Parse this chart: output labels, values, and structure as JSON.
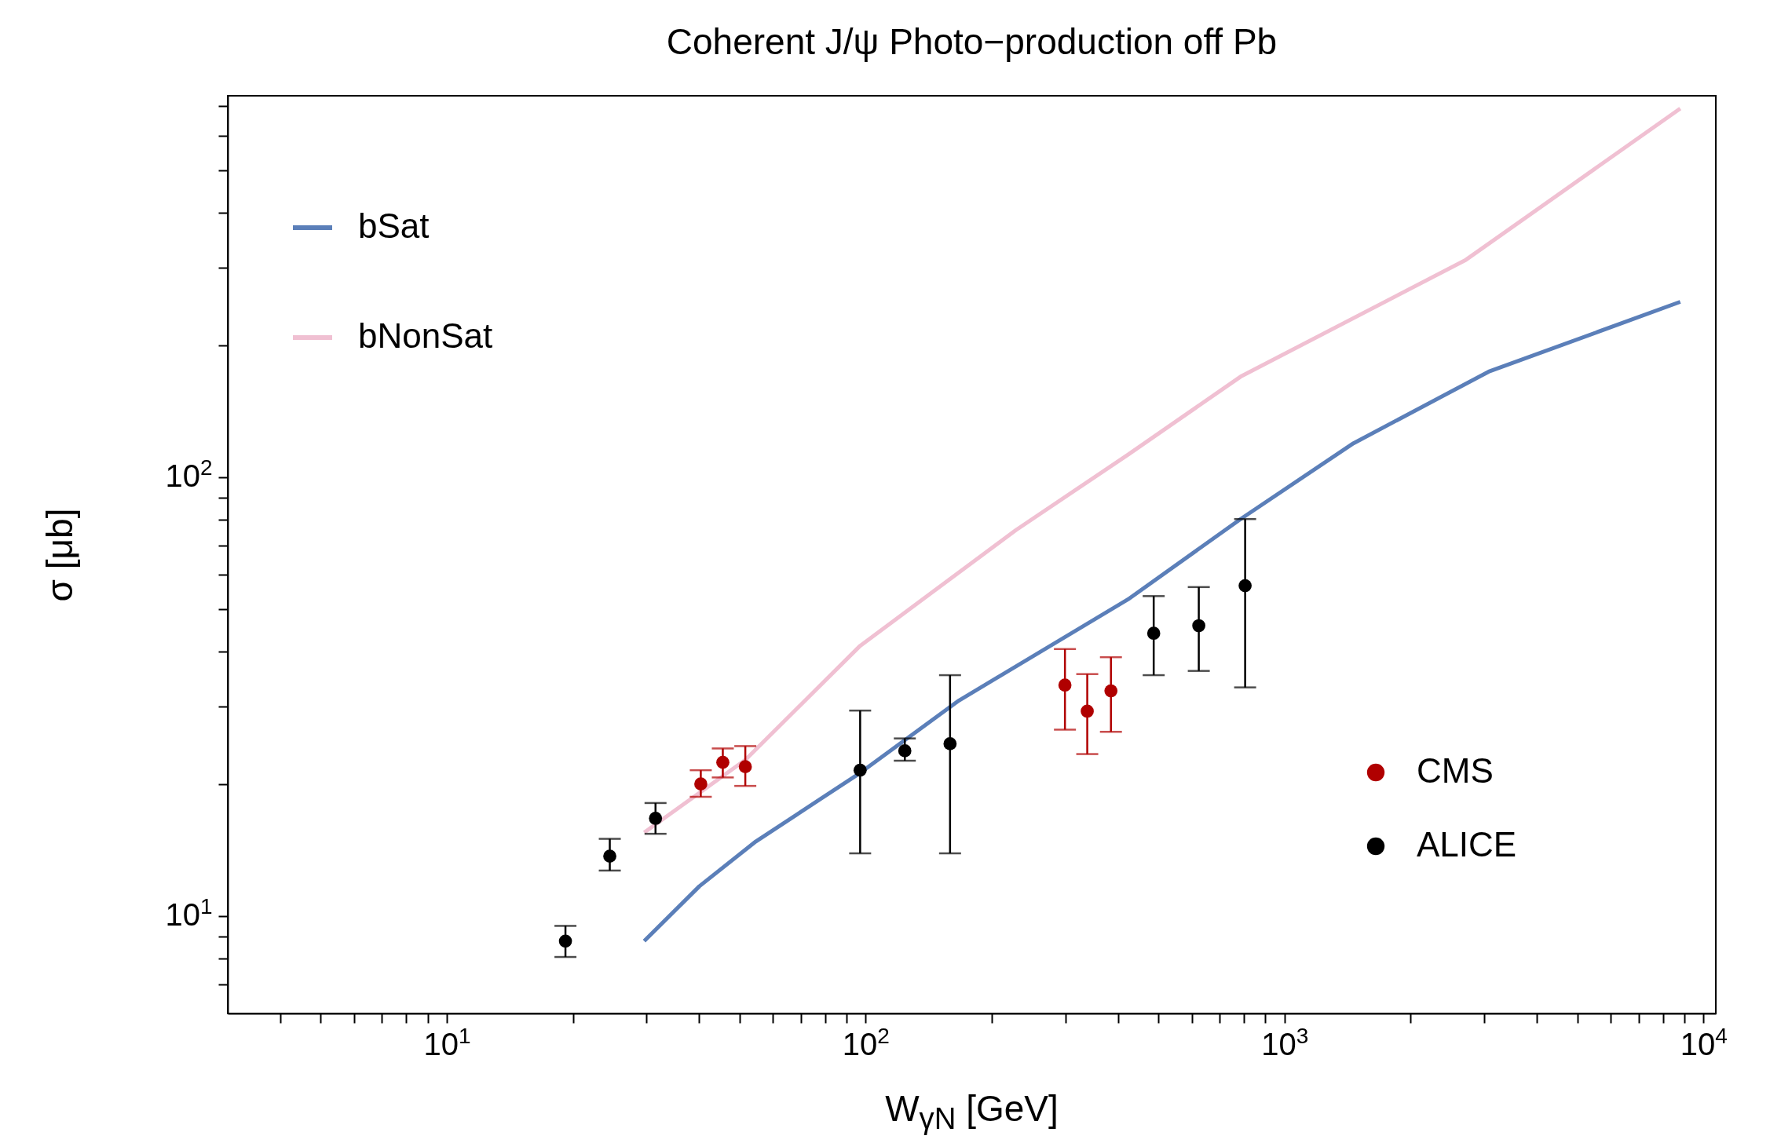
{
  "chart_data": {
    "type": "line",
    "title": "Coherent J/ψ Photo−production off Pb",
    "xlabel": "W$_{γN}$ [GeV]",
    "ylabel": "σ [μb]",
    "log": "xy",
    "xlim": [
      3,
      10700
    ],
    "ylim": [
      6,
      740
    ],
    "xticks": [
      {
        "value": 4,
        "label": null
      },
      {
        "value": 5,
        "label": null
      },
      {
        "value": 6,
        "label": null
      },
      {
        "value": 7,
        "label": null
      },
      {
        "value": 8,
        "label": null
      },
      {
        "value": 9,
        "label": null
      },
      {
        "value": 10,
        "label": "10$^{1}$"
      },
      {
        "value": 20,
        "label": null
      },
      {
        "value": 30,
        "label": null
      },
      {
        "value": 40,
        "label": null
      },
      {
        "value": 50,
        "label": null
      },
      {
        "value": 60,
        "label": null
      },
      {
        "value": 70,
        "label": null
      },
      {
        "value": 80,
        "label": null
      },
      {
        "value": 90,
        "label": null
      },
      {
        "value": 100,
        "label": "10$^{2}$"
      },
      {
        "value": 200,
        "label": null
      },
      {
        "value": 300,
        "label": null
      },
      {
        "value": 400,
        "label": null
      },
      {
        "value": 500,
        "label": null
      },
      {
        "value": 600,
        "label": null
      },
      {
        "value": 700,
        "label": null
      },
      {
        "value": 800,
        "label": null
      },
      {
        "value": 900,
        "label": null
      },
      {
        "value": 1000,
        "label": "10$^{3}$"
      },
      {
        "value": 2000,
        "label": null
      },
      {
        "value": 3000,
        "label": null
      },
      {
        "value": 4000,
        "label": null
      },
      {
        "value": 5000,
        "label": null
      },
      {
        "value": 6000,
        "label": null
      },
      {
        "value": 7000,
        "label": null
      },
      {
        "value": 8000,
        "label": null
      },
      {
        "value": 9000,
        "label": null
      },
      {
        "value": 10000,
        "label": "10$^{4}$"
      }
    ],
    "yticks": [
      {
        "value": 7,
        "label": null
      },
      {
        "value": 8,
        "label": null
      },
      {
        "value": 9,
        "label": null
      },
      {
        "value": 10,
        "label": "10$^{1}$"
      },
      {
        "value": 20,
        "label": null
      },
      {
        "value": 30,
        "label": null
      },
      {
        "value": 40,
        "label": null
      },
      {
        "value": 50,
        "label": null
      },
      {
        "value": 60,
        "label": null
      },
      {
        "value": 70,
        "label": null
      },
      {
        "value": 80,
        "label": null
      },
      {
        "value": 90,
        "label": null
      },
      {
        "value": 100,
        "label": "10$^{2}$"
      },
      {
        "value": 200,
        "label": null
      },
      {
        "value": 300,
        "label": null
      },
      {
        "value": 400,
        "label": null
      },
      {
        "value": 500,
        "label": null
      },
      {
        "value": 600,
        "label": null
      },
      {
        "value": 700,
        "label": null
      }
    ],
    "legend": "top left",
    "series": [
      {
        "name": "bSat",
        "color": "#5b7fb9",
        "x": [
          29.6,
          40.1,
          54.7,
          97,
          167,
          423,
          785,
          1460,
          3070,
          8800
        ],
        "values": [
          8.77,
          11.7,
          14.8,
          21.2,
          31.0,
          52.7,
          80.3,
          119.5,
          174,
          251
        ]
      },
      {
        "name": "bNonSat",
        "color": "#f0c0d2",
        "x": [
          29.6,
          51.6,
          97,
          228,
          423,
          785,
          2710,
          8800
        ],
        "values": [
          15.5,
          22.7,
          41.3,
          75.7,
          112.6,
          169.5,
          313,
          692
        ]
      },
      {
        "name": "CMS",
        "type": "scatter",
        "marker": "circle",
        "color": "#b00000",
        "x": [
          40.4,
          45.6,
          51.6,
          299,
          338,
          385
        ],
        "values": [
          20.0,
          22.4,
          21.9,
          33.6,
          29.3,
          32.6
        ],
        "errors": [
          [
            18.7,
            21.5
          ],
          [
            20.7,
            24.1
          ],
          [
            19.8,
            24.4
          ],
          [
            26.6,
            40.6
          ],
          [
            23.4,
            35.6
          ],
          [
            26.3,
            38.9
          ]
        ]
      },
      {
        "name": "ALICE",
        "type": "scatter",
        "marker": "circle",
        "color": "#000000",
        "x": [
          19.2,
          24.5,
          31.5,
          97,
          124,
          159,
          487,
          624,
          805
        ],
        "values": [
          8.77,
          13.7,
          16.7,
          21.5,
          23.8,
          24.7,
          44.1,
          45.9,
          56.6
        ],
        "errors": [
          [
            8.07,
            9.5
          ],
          [
            12.7,
            15.0
          ],
          [
            15.4,
            18.1
          ],
          [
            13.9,
            29.4
          ],
          [
            22.6,
            25.4
          ],
          [
            13.9,
            35.4
          ],
          [
            35.4,
            53.6
          ],
          [
            36.2,
            56.2
          ],
          [
            33.2,
            80.3
          ]
        ]
      }
    ]
  }
}
